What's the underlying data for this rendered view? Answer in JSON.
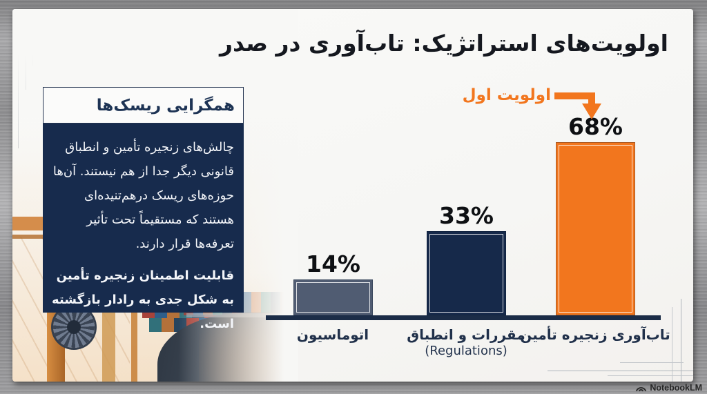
{
  "slide": {
    "title": "اولویت‌های استراتژیک: تاب‌آوری در صدر"
  },
  "callout": {
    "header": "همگرایی ریسک‌ها",
    "paragraph": "چالش‌های زنجیره تأمین و انطباق قانونی دیگر جدا از هم نیستند. آن‌ها حوزه‌های ریسک درهم‌تنیده‌ای هستند که مستقیماً تحت تأثیر تعرفه‌ها قرار دارند.",
    "emphasis": "قابلیت اطمینان زنجیره تأمین به شکل جدی به رادار بازگشته است."
  },
  "chart_data": {
    "type": "bar",
    "title": "اولویت‌های استراتژیک: تاب‌آوری در صدر",
    "categories": [
      {
        "label": "اتوماسیون",
        "sublabel": ""
      },
      {
        "label": "مقررات و انطباق",
        "sublabel": "(Regulations)"
      },
      {
        "label": "تاب‌آوری زنجیره تأمین",
        "sublabel": ""
      }
    ],
    "values": [
      14,
      33,
      68
    ],
    "value_labels": [
      "14%",
      "33%",
      "68%"
    ],
    "bar_colors": [
      "#505c72",
      "#16294a",
      "#f2761e"
    ],
    "xlabel": "",
    "ylabel": "",
    "ylim": [
      0,
      75
    ],
    "grid": false,
    "legend": false,
    "annotation": {
      "text": "اولویت اول",
      "points_to": "تاب‌آوری زنجیره تأمین"
    }
  },
  "watermark": {
    "label": "NotebookLM"
  },
  "colors": {
    "accent_orange": "#f2761e",
    "navy": "#1b2c47",
    "card_navy": "#172b4d",
    "slate": "#505c72"
  }
}
